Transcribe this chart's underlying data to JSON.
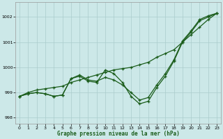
{
  "xlabel": "Graphe pression niveau de la mer (hPa)",
  "background_color": "#cce8e8",
  "grid_color": "#aacccc",
  "line_color": "#1a5c1a",
  "xlim": [
    -0.5,
    23.5
  ],
  "ylim": [
    997.75,
    1002.6
  ],
  "yticks": [
    998,
    999,
    1000,
    1001,
    1002
  ],
  "xticks": [
    0,
    1,
    2,
    3,
    4,
    5,
    6,
    7,
    8,
    9,
    10,
    11,
    12,
    13,
    14,
    15,
    16,
    17,
    18,
    19,
    20,
    21,
    22,
    23
  ],
  "line_straight": [
    998.85,
    999.0,
    999.1,
    999.15,
    999.2,
    999.25,
    999.4,
    999.5,
    999.6,
    999.7,
    999.8,
    999.9,
    999.95,
    1000.0,
    1000.1,
    1000.2,
    1000.4,
    1000.55,
    1000.7,
    1001.0,
    1001.3,
    1001.6,
    1001.9,
    1002.15
  ],
  "line_mid": [
    998.85,
    998.95,
    999.0,
    998.95,
    998.85,
    998.9,
    999.55,
    999.7,
    999.5,
    999.45,
    999.6,
    999.5,
    999.3,
    999.0,
    998.7,
    998.8,
    999.3,
    999.75,
    1000.3,
    1001.05,
    1001.45,
    1001.9,
    1002.05,
    1002.15
  ],
  "line_dip": [
    998.85,
    998.95,
    999.0,
    998.95,
    998.85,
    998.9,
    999.55,
    999.65,
    999.45,
    999.4,
    999.9,
    999.75,
    999.4,
    998.85,
    998.55,
    998.65,
    999.2,
    999.65,
    1000.25,
    1001.0,
    1001.4,
    1001.85,
    1002.0,
    1002.15
  ]
}
